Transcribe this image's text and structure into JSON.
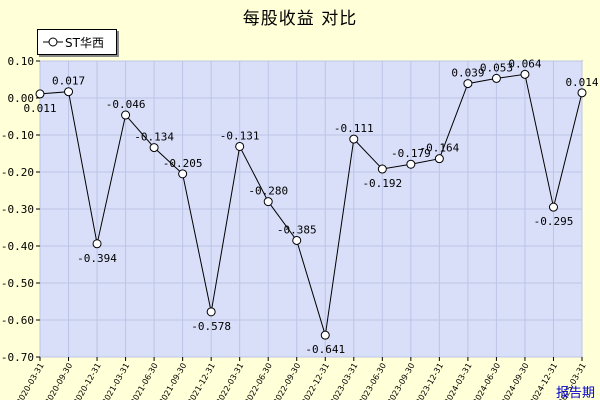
{
  "title": "每股收益  对比",
  "legend": {
    "series_name": "ST华西",
    "marker_icon": "circle-marker-icon"
  },
  "x_axis_unit_label": "报告期",
  "colors": {
    "plot_bg": "#d9dff8",
    "outer_bg": "#ffffd8",
    "grid": "#bcc4e8",
    "line": "#000000",
    "unit_label": "#0000cc"
  },
  "chart_data": {
    "type": "line",
    "title": "每股收益  对比",
    "xlabel": "报告期",
    "ylabel": "",
    "ylim": [
      -0.7,
      0.1
    ],
    "yticks": [
      "0.10",
      "0.00",
      "-0.10",
      "-0.20",
      "-0.30",
      "-0.40",
      "-0.50",
      "-0.60",
      "-0.70"
    ],
    "grid": true,
    "legend_position": "top-left",
    "x": [
      "2020-03-31",
      "2020-09-30",
      "2020-12-31",
      "2021-03-31",
      "2021-06-30",
      "2021-09-30",
      "2021-12-31",
      "2022-03-31",
      "2022-06-30",
      "2022-09-30",
      "2022-12-31",
      "2023-03-31",
      "2023-06-30",
      "2023-09-30",
      "2023-12-31",
      "2024-03-31",
      "2024-06-30",
      "2024-09-30",
      "2024-12-31",
      "2025-03-31"
    ],
    "series": [
      {
        "name": "ST华西",
        "values": [
          0.011,
          0.017,
          -0.394,
          -0.046,
          -0.134,
          -0.205,
          -0.578,
          -0.131,
          -0.28,
          -0.385,
          -0.641,
          -0.111,
          -0.192,
          -0.179,
          -0.164,
          0.039,
          0.053,
          0.064,
          -0.295,
          0.014
        ],
        "labels": [
          "0.011",
          "0.017",
          "-0.394",
          "-0.046",
          "-0.134",
          "-0.205",
          "-0.578",
          "-0.131",
          "-0.280",
          "-0.385",
          "-0.641",
          "-0.111",
          "-0.192",
          "-0.179",
          "-0.164",
          "0.039",
          "0.053",
          "0.064",
          "-0.295",
          "0.014"
        ]
      }
    ]
  }
}
